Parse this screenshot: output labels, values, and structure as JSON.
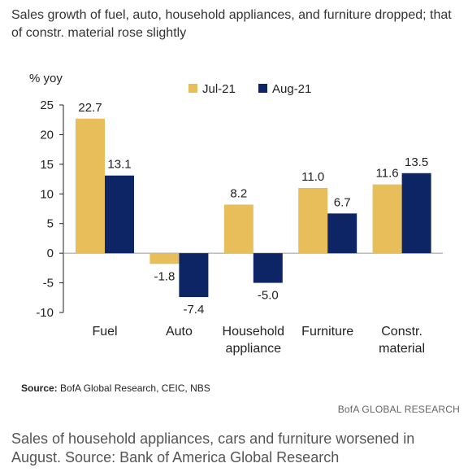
{
  "chart_data": {
    "type": "bar",
    "title": "Sales growth of fuel, auto, household appliances, and furniture dropped; that of constr. material rose slightly",
    "ylabel": "% yoy",
    "ylim": [
      -10,
      25
    ],
    "yticks": [
      25,
      20,
      15,
      10,
      5,
      0,
      -5,
      -10
    ],
    "categories": [
      [
        "Fuel"
      ],
      [
        "Auto"
      ],
      [
        "Household",
        "appliance"
      ],
      [
        "Furniture"
      ],
      [
        "Constr.",
        "material"
      ]
    ],
    "series": [
      {
        "name": "Jul-21",
        "values": [
          22.7,
          -1.8,
          8.2,
          11.0,
          11.6
        ],
        "color": "#E8BE5A"
      },
      {
        "name": "Aug-21",
        "values": [
          13.1,
          -7.4,
          -5.0,
          6.7,
          13.5
        ],
        "color": "#0E2565"
      }
    ],
    "legend_position": "top"
  },
  "source_label": "Source:",
  "source_text": " BofA Global Research, CEIC, NBS",
  "brand": "BofA GLOBAL RESEARCH",
  "caption": "Sales of household appliances, cars and furniture worsened in August. Source: Bank of America Global Research"
}
